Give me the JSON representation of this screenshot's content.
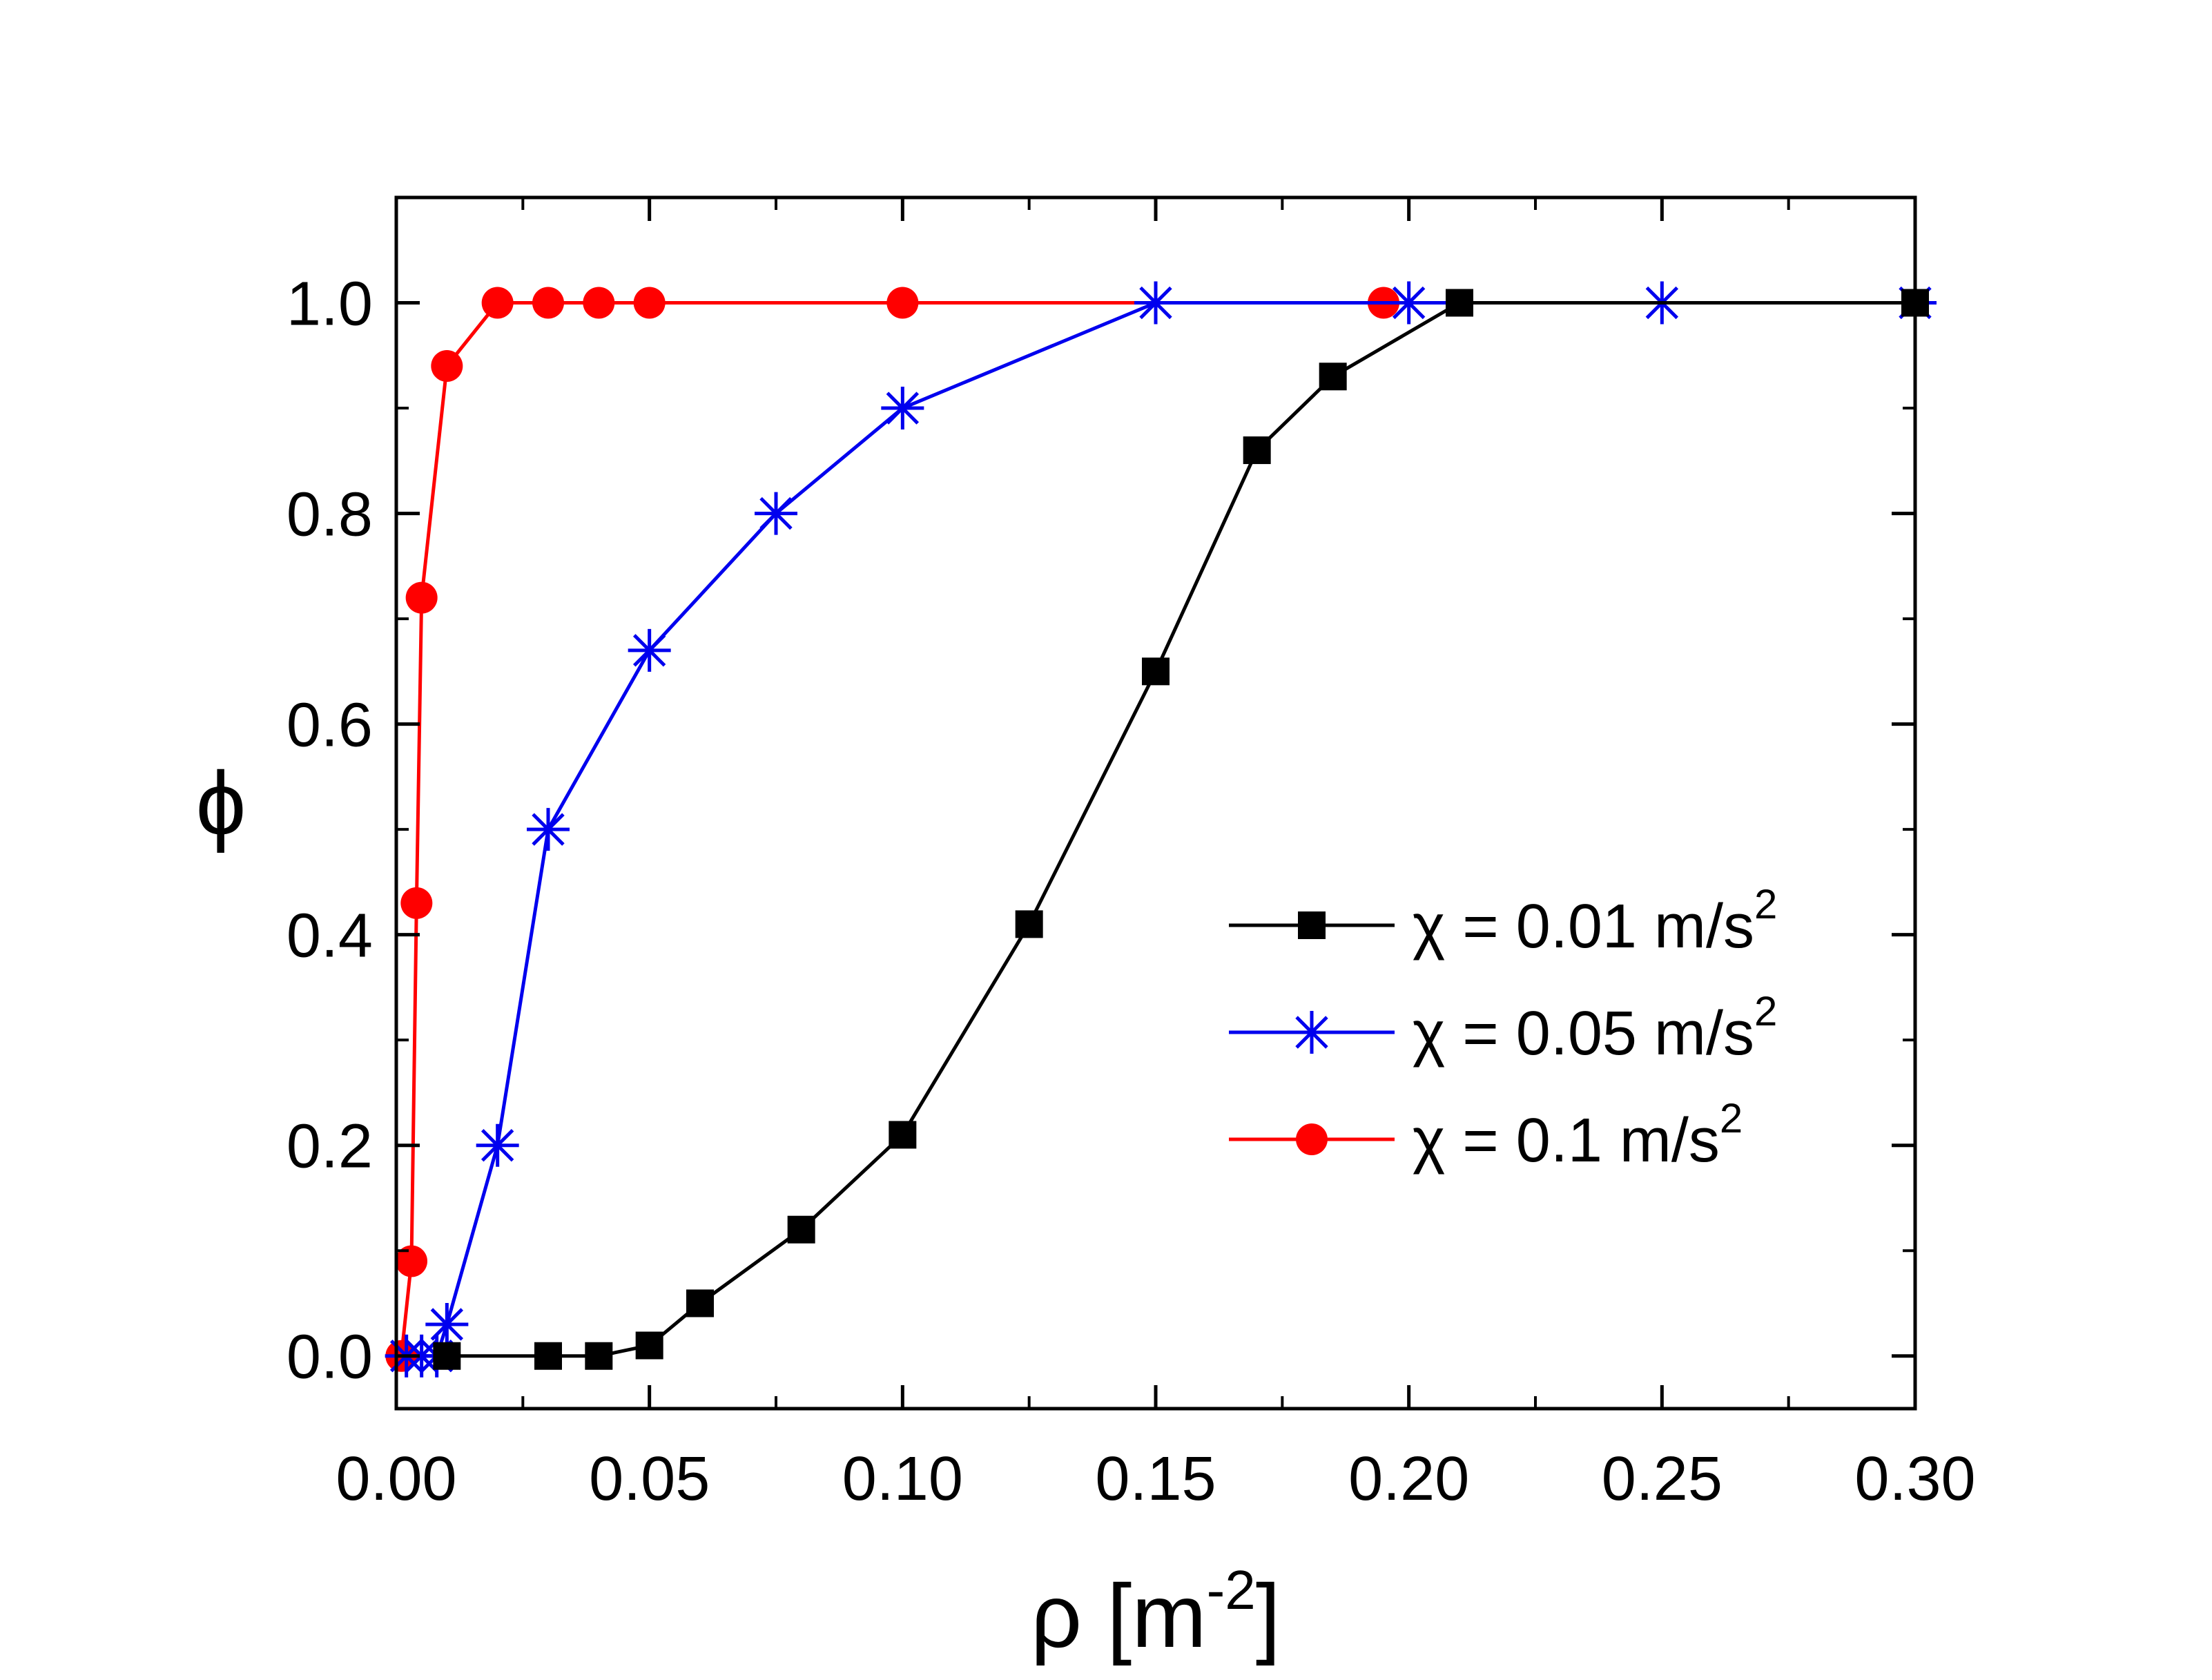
{
  "chart_data": {
    "type": "line",
    "title": "",
    "xlabel": "ρ [m-2]",
    "xlabel_parts": {
      "base": "ρ [m",
      "sup": "-2",
      "tail": "]"
    },
    "ylabel": "ϕ",
    "xlim": [
      0.0,
      0.3
    ],
    "ylim": [
      -0.05,
      1.1
    ],
    "x_ticks": [
      0.0,
      0.05,
      0.1,
      0.15,
      0.2,
      0.25,
      0.3
    ],
    "x_tick_labels": [
      "0.00",
      "0.05",
      "0.10",
      "0.15",
      "0.20",
      "0.25",
      "0.30"
    ],
    "y_ticks": [
      0.0,
      0.2,
      0.4,
      0.6,
      0.8,
      1.0
    ],
    "y_tick_labels": [
      "0.0",
      "0.2",
      "0.4",
      "0.6",
      "0.8",
      "1.0"
    ],
    "grid": false,
    "legend_position": "right",
    "series": [
      {
        "name": "χ = 0.01 m/s2",
        "label_base": "χ = 0.01 m/s",
        "label_sup": "2",
        "color": "#000000",
        "marker": "square",
        "x": [
          0.01,
          0.03,
          0.04,
          0.05,
          0.06,
          0.08,
          0.1,
          0.125,
          0.15,
          0.17,
          0.185,
          0.21,
          0.3
        ],
        "y": [
          0.0,
          0.0,
          0.0,
          0.01,
          0.05,
          0.12,
          0.21,
          0.41,
          0.65,
          0.86,
          0.93,
          1.0,
          1.0
        ]
      },
      {
        "name": "χ = 0.05 m/s2",
        "label_base": "χ = 0.05 m/s",
        "label_sup": "2",
        "color": "#0000ee",
        "marker": "star",
        "x": [
          0.002,
          0.005,
          0.008,
          0.01,
          0.02,
          0.03,
          0.05,
          0.075,
          0.1,
          0.15,
          0.2,
          0.25,
          0.3
        ],
        "y": [
          0.0,
          0.0,
          0.0,
          0.03,
          0.2,
          0.5,
          0.67,
          0.8,
          0.9,
          1.0,
          1.0,
          1.0,
          1.0
        ]
      },
      {
        "name": "χ = 0.1  m/s2",
        "label_base": "χ = 0.1  m/s",
        "label_sup": "2",
        "color": "#ff0000",
        "marker": "circle",
        "x": [
          0.001,
          0.003,
          0.004,
          0.005,
          0.01,
          0.02,
          0.03,
          0.04,
          0.05,
          0.1,
          0.195
        ],
        "y": [
          0.0,
          0.09,
          0.43,
          0.72,
          0.94,
          1.0,
          1.0,
          1.0,
          1.0,
          1.0,
          1.0
        ]
      }
    ]
  }
}
